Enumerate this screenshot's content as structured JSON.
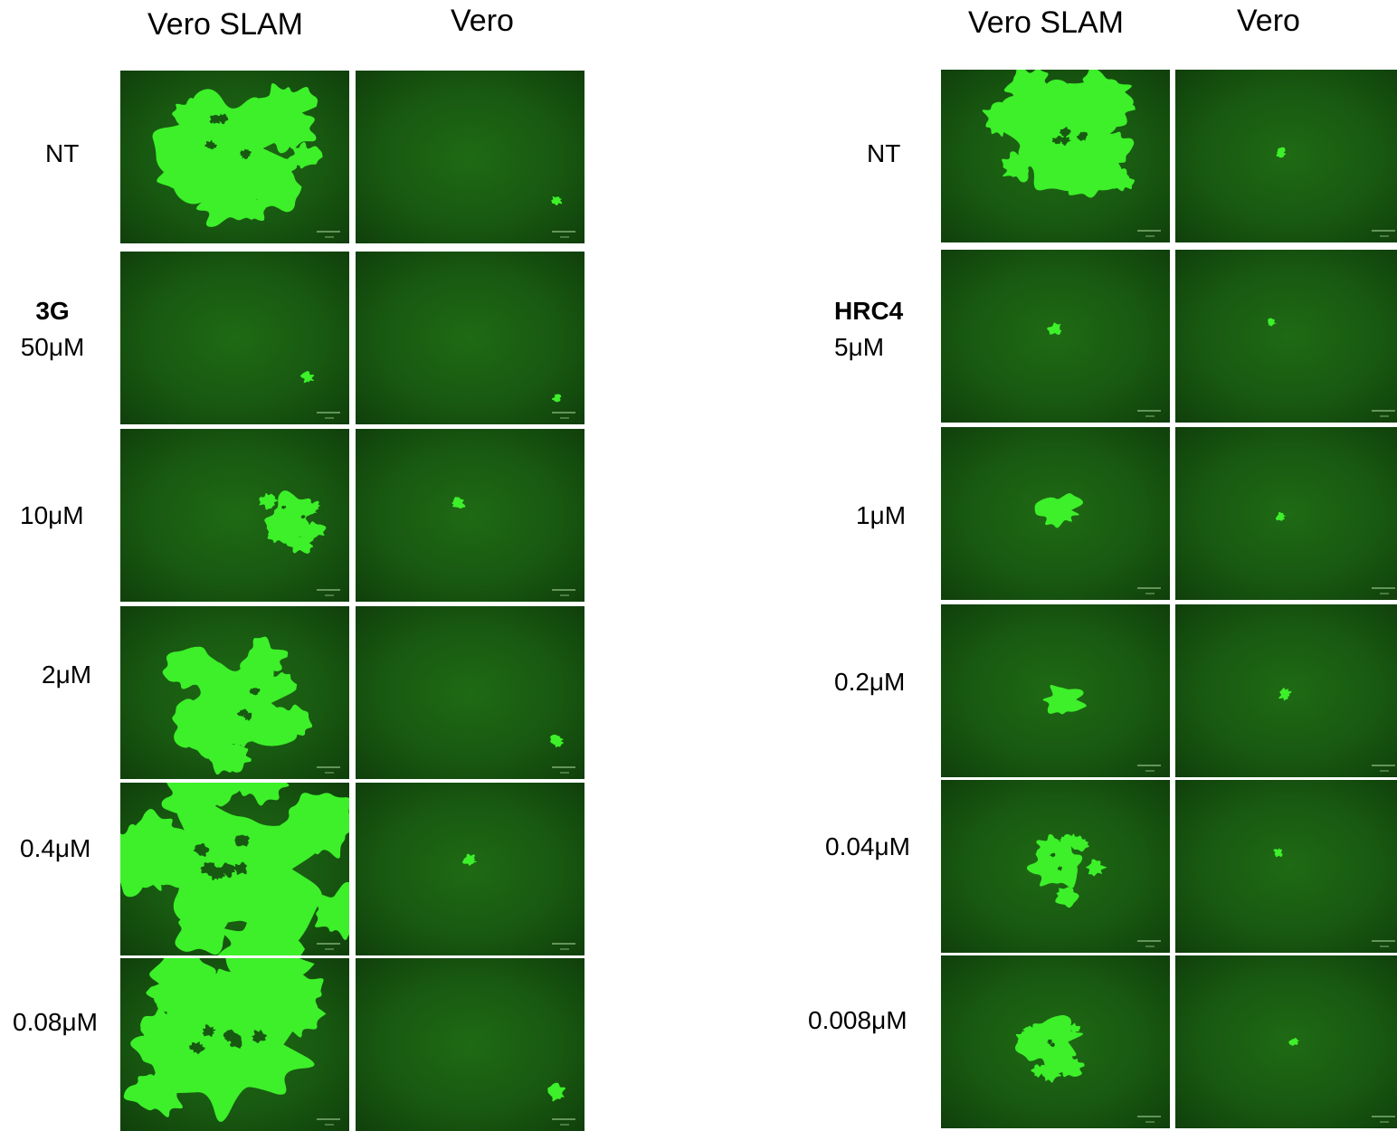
{
  "panels": [
    {
      "columns": [
        "Vero SLAM",
        "Vero"
      ],
      "agent": "3G",
      "rows": [
        {
          "label": "NT",
          "plaques": [
            {
              "size": 1.0
            },
            {
              "size": 0.08
            }
          ]
        },
        {
          "label": "50μM",
          "plaques": [
            {
              "size": 0.1
            },
            {
              "size": 0.06
            }
          ]
        },
        {
          "label": "10μM",
          "plaques": [
            {
              "size": 0.42
            },
            {
              "size": 0.1
            }
          ]
        },
        {
          "label": "2μM",
          "plaques": [
            {
              "size": 0.85
            },
            {
              "size": 0.1
            }
          ]
        },
        {
          "label": "0.4μM",
          "plaques": [
            {
              "size": 1.4
            },
            {
              "size": 0.1
            }
          ]
        },
        {
          "label": "0.08μM",
          "plaques": [
            {
              "size": 1.3
            },
            {
              "size": 0.14
            }
          ]
        }
      ]
    },
    {
      "columns": [
        "Vero SLAM",
        "Vero"
      ],
      "agent": "HRC4",
      "rows": [
        {
          "label": "NT",
          "plaques": [
            {
              "size": 0.95
            },
            {
              "size": 0.08
            }
          ]
        },
        {
          "label": "5μM",
          "plaques": [
            {
              "size": 0.1
            },
            {
              "size": 0.07
            }
          ]
        },
        {
          "label": "1μM",
          "plaques": [
            {
              "size": 0.3
            },
            {
              "size": 0.08
            }
          ]
        },
        {
          "label": "0.2μM",
          "plaques": [
            {
              "size": 0.3
            },
            {
              "size": 0.1
            }
          ]
        },
        {
          "label": "0.04μM",
          "plaques": [
            {
              "size": 0.45
            },
            {
              "size": 0.07
            }
          ]
        },
        {
          "label": "0.008μM",
          "plaques": [
            {
              "size": 0.45
            },
            {
              "size": 0.07
            }
          ]
        }
      ]
    }
  ],
  "colors": {
    "background": "#ffffff",
    "tile_bg": "#185911",
    "plaque": "#3df02a",
    "scale_bar": "#8fbf80"
  }
}
